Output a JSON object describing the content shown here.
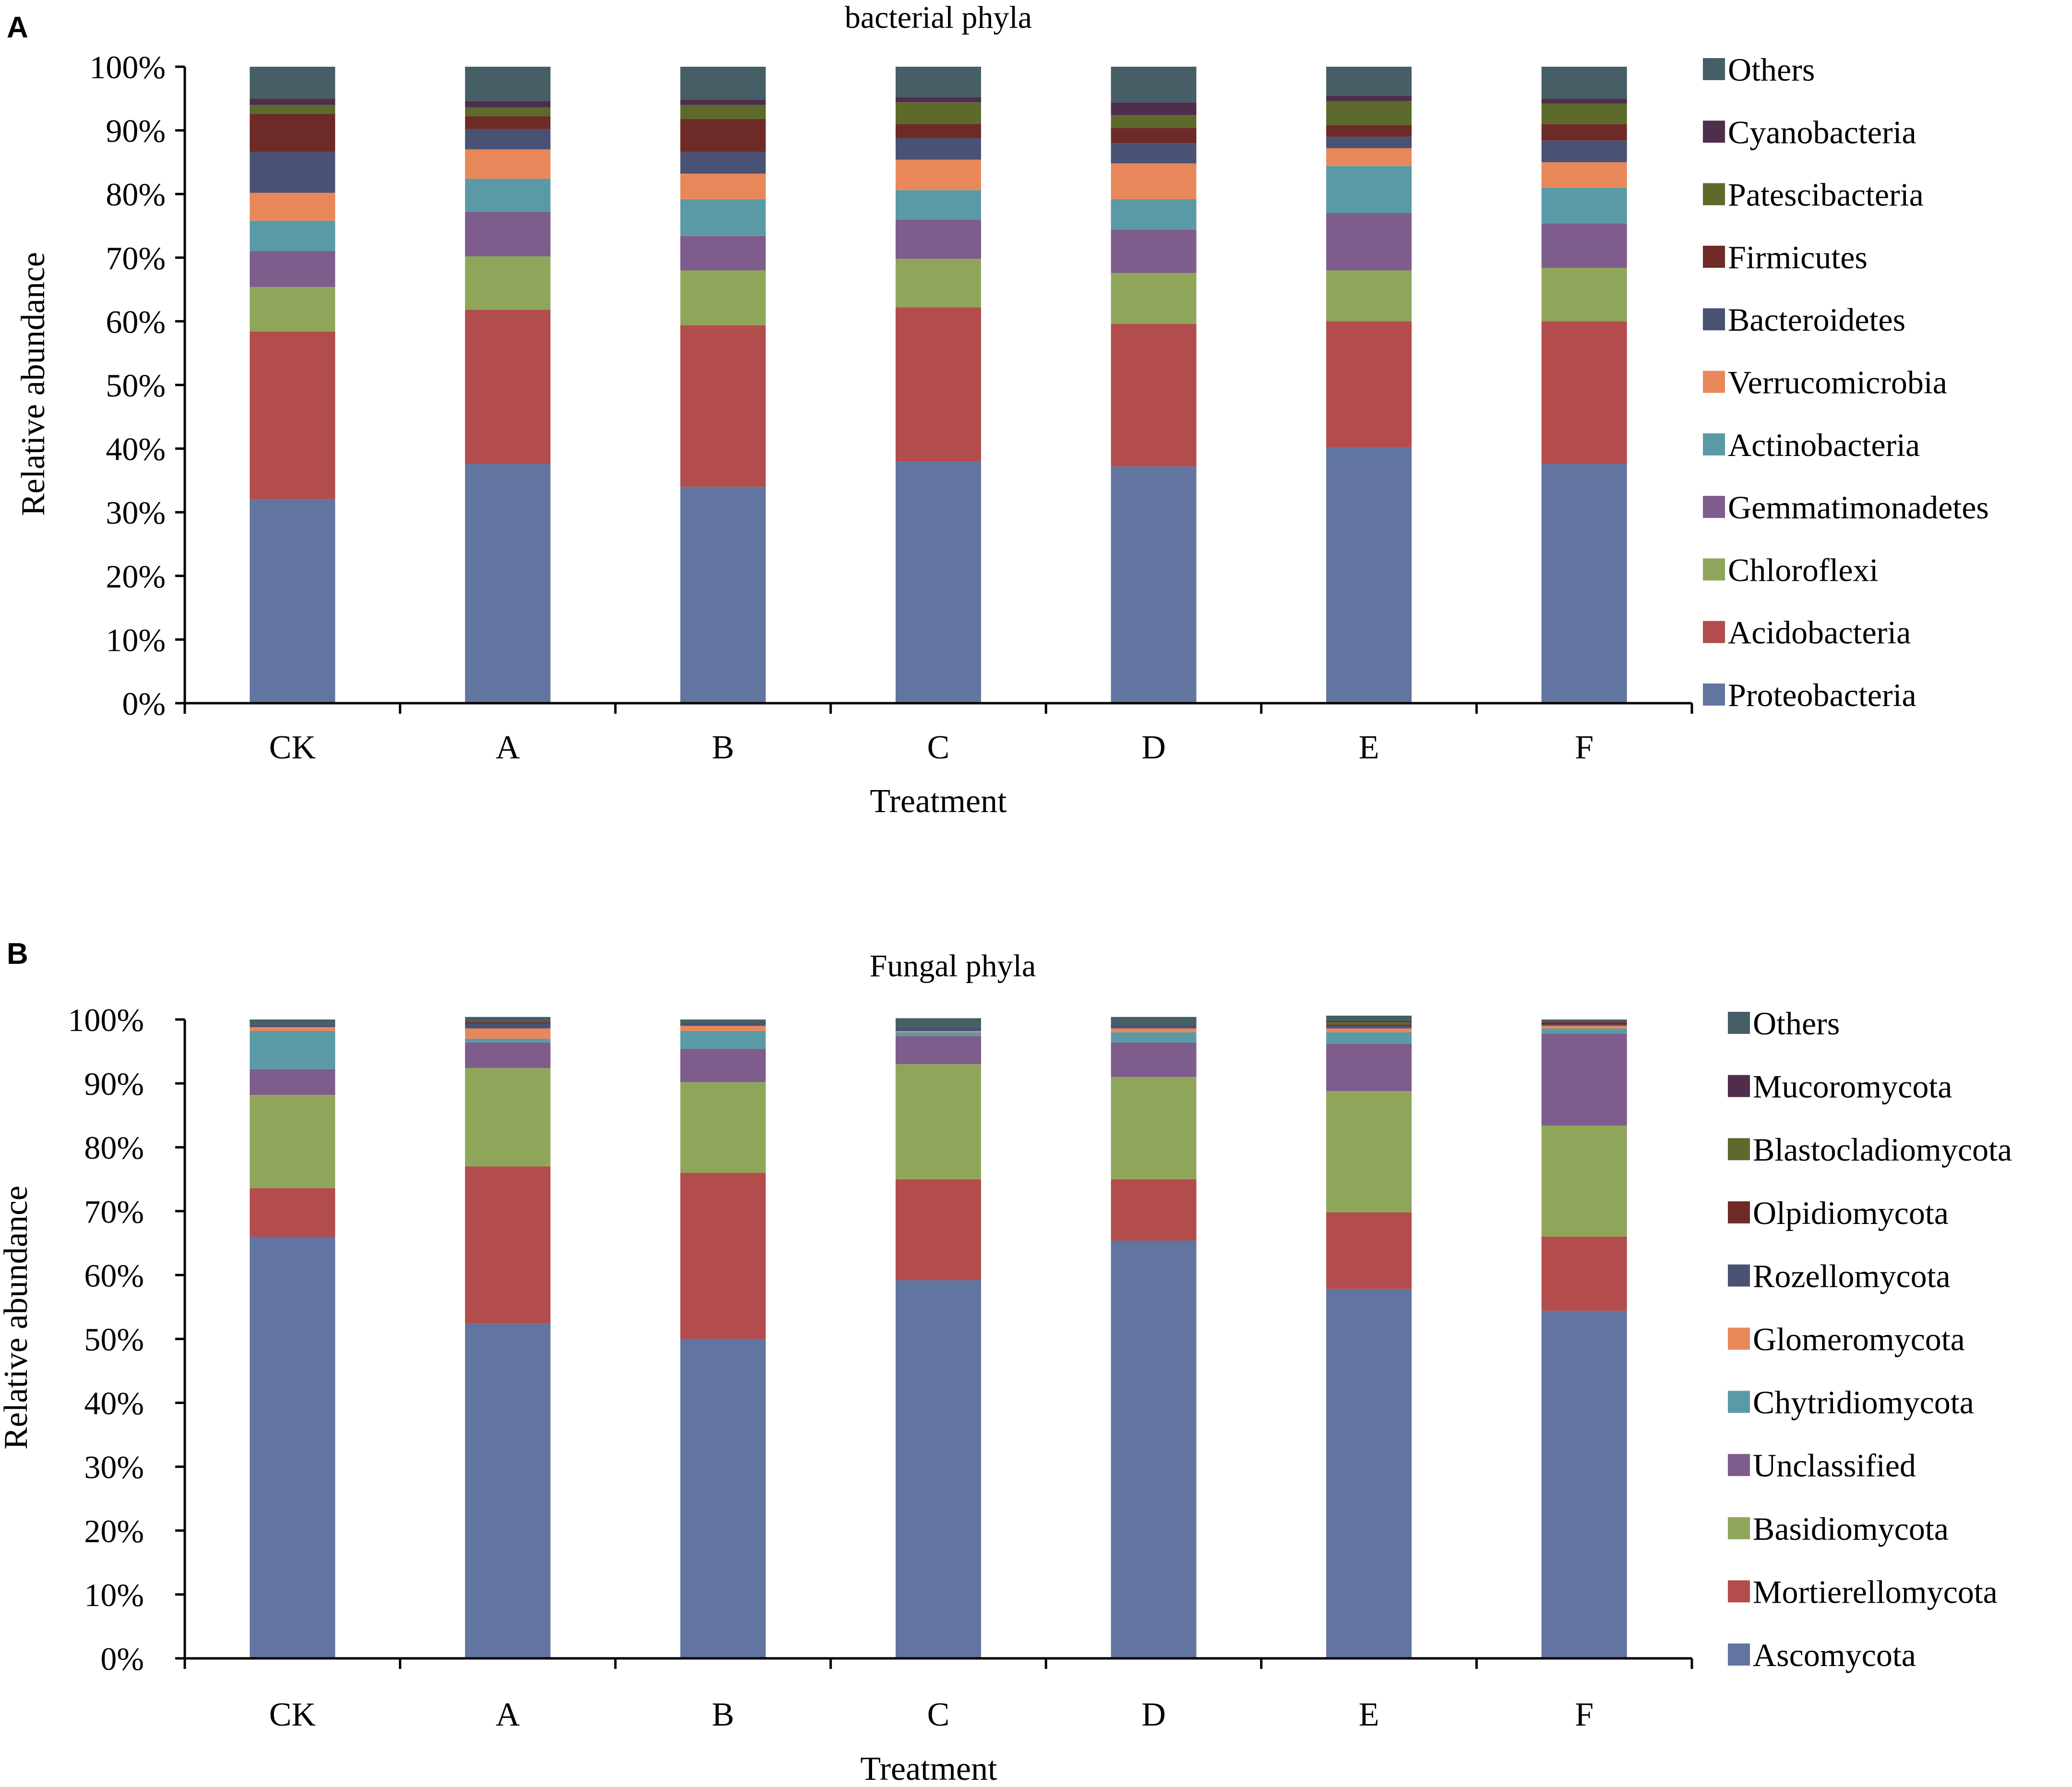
{
  "chart_data": [
    {
      "panel_label": "A",
      "type": "bar",
      "stacked": true,
      "title": "bacterial phyla",
      "xlabel": "Treatment",
      "ylabel": "Relative abundance",
      "ylim": [
        0,
        100
      ],
      "yticks": [
        "0%",
        "10%",
        "20%",
        "30%",
        "40%",
        "50%",
        "60%",
        "70%",
        "80%",
        "90%",
        "100%"
      ],
      "categories": [
        "CK",
        "A",
        "B",
        "C",
        "D",
        "E",
        "F"
      ],
      "legend_position": "right",
      "series": [
        {
          "name": "Proteobacteria",
          "color": "#6274a0",
          "values": [
            32.0,
            37.6,
            34.0,
            38.0,
            37.2,
            40.2,
            37.6
          ]
        },
        {
          "name": "Acidobacteria",
          "color": "#b34c4c",
          "values": [
            26.4,
            24.2,
            25.4,
            24.2,
            22.4,
            19.8,
            22.4
          ]
        },
        {
          "name": "Chloroflexi",
          "color": "#8fa65a",
          "values": [
            7.0,
            8.4,
            8.6,
            7.6,
            8.0,
            8.0,
            8.4
          ]
        },
        {
          "name": "Gemmatimonadetes",
          "color": "#7e5c8c",
          "values": [
            5.6,
            7.0,
            5.4,
            6.2,
            6.8,
            9.0,
            7.0
          ]
        },
        {
          "name": "Actinobacteria",
          "color": "#5a9aa6",
          "values": [
            4.8,
            5.2,
            5.8,
            4.6,
            4.8,
            7.4,
            5.6
          ]
        },
        {
          "name": "Verrucomicrobia",
          "color": "#e8885a",
          "values": [
            4.4,
            4.6,
            4.0,
            4.8,
            5.6,
            2.8,
            4.0
          ]
        },
        {
          "name": "Bacteroidetes",
          "color": "#4a5274",
          "values": [
            6.4,
            3.2,
            3.4,
            3.4,
            3.2,
            1.8,
            3.4
          ]
        },
        {
          "name": "Firmicutes",
          "color": "#6e2a26",
          "values": [
            6.0,
            2.0,
            5.2,
            2.2,
            2.4,
            1.8,
            2.6
          ]
        },
        {
          "name": "Patescibacteria",
          "color": "#5e6a2c",
          "values": [
            1.4,
            1.4,
            2.2,
            3.4,
            2.0,
            3.8,
            3.2
          ]
        },
        {
          "name": "Cyanobacteria",
          "color": "#4e2e4a",
          "values": [
            1.0,
            1.0,
            0.8,
            0.8,
            2.0,
            0.8,
            0.8
          ]
        },
        {
          "name": "Others",
          "color": "#465e66",
          "values": [
            5.0,
            5.4,
            5.2,
            4.8,
            5.6,
            4.6,
            5.0
          ]
        }
      ]
    },
    {
      "panel_label": "B",
      "type": "bar",
      "stacked": true,
      "title": "Fungal phyla",
      "xlabel": "Treatment",
      "ylabel": "Relative abundance",
      "ylim": [
        0,
        100
      ],
      "yticks": [
        "0%",
        "10%",
        "20%",
        "30%",
        "40%",
        "50%",
        "60%",
        "70%",
        "80%",
        "90%",
        "100%"
      ],
      "categories": [
        "CK",
        "A",
        "B",
        "C",
        "D",
        "E",
        "F"
      ],
      "legend_position": "right",
      "series": [
        {
          "name": "Ascomycota",
          "color": "#6274a0",
          "values": [
            66.0,
            52.4,
            50.0,
            59.2,
            65.4,
            57.8,
            54.4
          ]
        },
        {
          "name": "Mortierellomycota",
          "color": "#b34c4c",
          "values": [
            7.6,
            24.6,
            26.0,
            15.8,
            9.6,
            12.0,
            11.6
          ]
        },
        {
          "name": "Basidiomycota",
          "color": "#8fa65a",
          "values": [
            14.6,
            15.4,
            14.2,
            18.0,
            16.0,
            19.0,
            17.4
          ]
        },
        {
          "name": "Unclassified",
          "color": "#7e5c8c",
          "values": [
            4.0,
            4.0,
            5.2,
            4.4,
            5.4,
            7.4,
            14.4
          ]
        },
        {
          "name": "Chytridiomycota",
          "color": "#5a9aa6",
          "values": [
            6.0,
            0.6,
            2.8,
            0.6,
            1.6,
            1.8,
            0.8
          ]
        },
        {
          "name": "Glomeromycota",
          "color": "#e8885a",
          "values": [
            0.6,
            1.6,
            0.8,
            0.2,
            0.6,
            0.6,
            0.4
          ]
        },
        {
          "name": "Rozellomycota",
          "color": "#4a5274",
          "values": [
            0.4,
            0.8,
            0.4,
            0.6,
            0.6,
            0.4,
            0.2
          ]
        },
        {
          "name": "Olpidiomycota",
          "color": "#6e2a26",
          "values": [
            0.0,
            0.2,
            0.0,
            0.0,
            0.0,
            0.2,
            0.4
          ]
        },
        {
          "name": "Blastocladiomycota",
          "color": "#5e6a2c",
          "values": [
            0.0,
            0.0,
            0.0,
            0.0,
            0.0,
            0.4,
            0.0
          ]
        },
        {
          "name": "Mucoromycota",
          "color": "#4e2e4a",
          "values": [
            0.0,
            0.0,
            0.0,
            0.0,
            0.0,
            0.2,
            0.0
          ]
        },
        {
          "name": "Others",
          "color": "#465e66",
          "values": [
            0.8,
            0.8,
            0.6,
            1.4,
            1.2,
            0.8,
            0.4
          ]
        }
      ]
    }
  ]
}
